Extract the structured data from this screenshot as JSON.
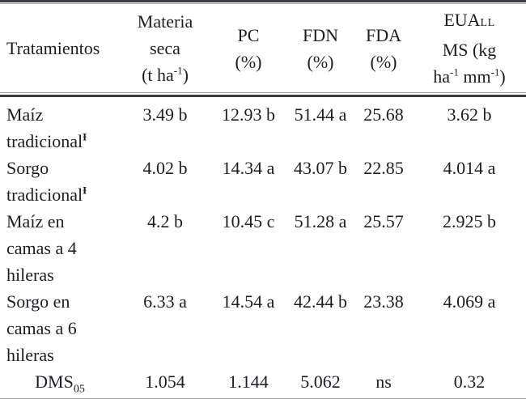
{
  "meta": {
    "background_color": "#ffffff",
    "text_color": "#1d1d24",
    "rule_color": "#3c3c44"
  },
  "table": {
    "header": {
      "col1": "Tratamientos",
      "col2": {
        "line1": "Materia",
        "line2": "seca",
        "line3_pre": "(t ha",
        "line3_sup": "-1",
        "line3_post": ")"
      },
      "col3": {
        "line1": "PC",
        "line2": "(%)"
      },
      "col4": {
        "line1": "FDN",
        "line2": "(%)"
      },
      "col5": {
        "line1": "FDA",
        "line2": "(%)"
      },
      "col6": {
        "line1_pre": "EUA",
        "line1_smallcaps": "LL",
        "line2": "MS (kg",
        "line3_pre": "ha",
        "line3_sup1": "-1",
        "line3_mid": " mm",
        "line3_sup2": "-1",
        "line3_post": ")"
      }
    },
    "rows": [
      {
        "name_line1": "Maíz",
        "name_line2": "tradicional",
        "name_sup": "Ɨ",
        "values": [
          "3.49 b",
          "12.93 b",
          "51.44 a",
          "25.68",
          "3.62 b"
        ]
      },
      {
        "name_line1": "Sorgo",
        "name_line2": "tradicional",
        "name_sup": "Ɨ",
        "values": [
          "4.02 b",
          "14.34 a",
          "43.07 b",
          "22.85",
          "4.014 a"
        ]
      },
      {
        "name_line1": "Maíz en",
        "name_line2": "camas a 4",
        "name_line3": "hileras",
        "values": [
          "4.2 b",
          "10.45 c",
          "51.28 a",
          "25.57",
          "2.925 b"
        ]
      },
      {
        "name_line1": "Sorgo en",
        "name_line2": "camas a 6",
        "name_line3": "hileras",
        "values": [
          "6.33 a",
          "14.54 a",
          "42.44 b",
          "23.38",
          "4.069 a"
        ]
      },
      {
        "name_pre": "DMS",
        "name_sub": "05",
        "values": [
          "1.054",
          "1.144",
          "5.062",
          "ns",
          "0.32"
        ]
      }
    ]
  },
  "chart_data": {
    "type": "table",
    "columns": [
      "Tratamientos",
      "Materia seca (t ha-1)",
      "PC (%)",
      "FDN (%)",
      "FDA (%)",
      "EUALL MS (kg ha-1 mm-1)"
    ],
    "rows": [
      [
        "Maíz tradicionalƗ",
        "3.49 b",
        "12.93 b",
        "51.44 a",
        "25.68",
        "3.62 b"
      ],
      [
        "Sorgo tradicionalƗ",
        "4.02 b",
        "14.34 a",
        "43.07 b",
        "22.85",
        "4.014 a"
      ],
      [
        "Maíz en camas a 4 hileras",
        "4.2 b",
        "10.45 c",
        "51.28 a",
        "25.57",
        "2.925 b"
      ],
      [
        "Sorgo en camas a 6 hileras",
        "6.33 a",
        "14.54 a",
        "42.44 b",
        "23.38",
        "4.069 a"
      ],
      [
        "DMS05",
        "1.054",
        "1.144",
        "5.062",
        "ns",
        "0.32"
      ]
    ]
  }
}
